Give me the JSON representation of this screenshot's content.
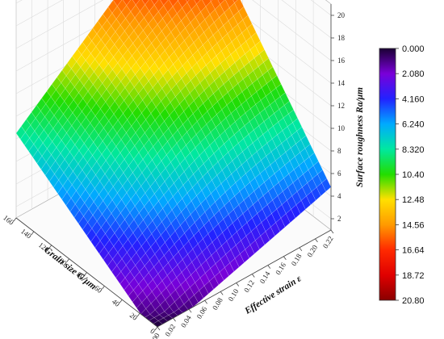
{
  "chart_data": {
    "type": "surface3d",
    "title": "",
    "x_axis": {
      "label": "Grain size G/μm",
      "ticks": [
        "160",
        "140",
        "120",
        "100",
        "80",
        "60",
        "40",
        "20",
        "0"
      ],
      "range": [
        0,
        160
      ]
    },
    "y_axis": {
      "label": "Effective strain ε",
      "ticks": [
        "0.00",
        "0.02",
        "0.04",
        "0.06",
        "0.08",
        "0.10",
        "0.12",
        "0.14",
        "0.16",
        "0.18",
        "0.20",
        "0.22"
      ],
      "range": [
        0,
        0.22
      ]
    },
    "z_axis": {
      "label": "Surface roughness Ra/μm",
      "ticks": [
        "2",
        "4",
        "6",
        "8",
        "10",
        "12",
        "14",
        "16",
        "18",
        "20"
      ],
      "range": [
        1,
        21
      ]
    },
    "surface_corners": [
      {
        "grain_size": 0,
        "strain": 0.0,
        "ra": 0.0
      },
      {
        "grain_size": 0,
        "strain": 0.22,
        "ra": 4.8
      },
      {
        "grain_size": 160,
        "strain": 0.0,
        "ra": 8.5
      },
      {
        "grain_size": 160,
        "strain": 0.22,
        "ra": 21.0
      }
    ],
    "colorbar": {
      "levels": [
        "0.000",
        "2.080",
        "4.160",
        "6.240",
        "8.320",
        "10.40",
        "12.48",
        "14.56",
        "16.64",
        "18.72",
        "20.80"
      ],
      "colors": [
        "#1a0033",
        "#7a00d8",
        "#2222ff",
        "#00aaff",
        "#00e8a0",
        "#22dd00",
        "#ffe000",
        "#ff9a00",
        "#ff2a00",
        "#e00000",
        "#8a0000"
      ]
    },
    "grid": true
  }
}
